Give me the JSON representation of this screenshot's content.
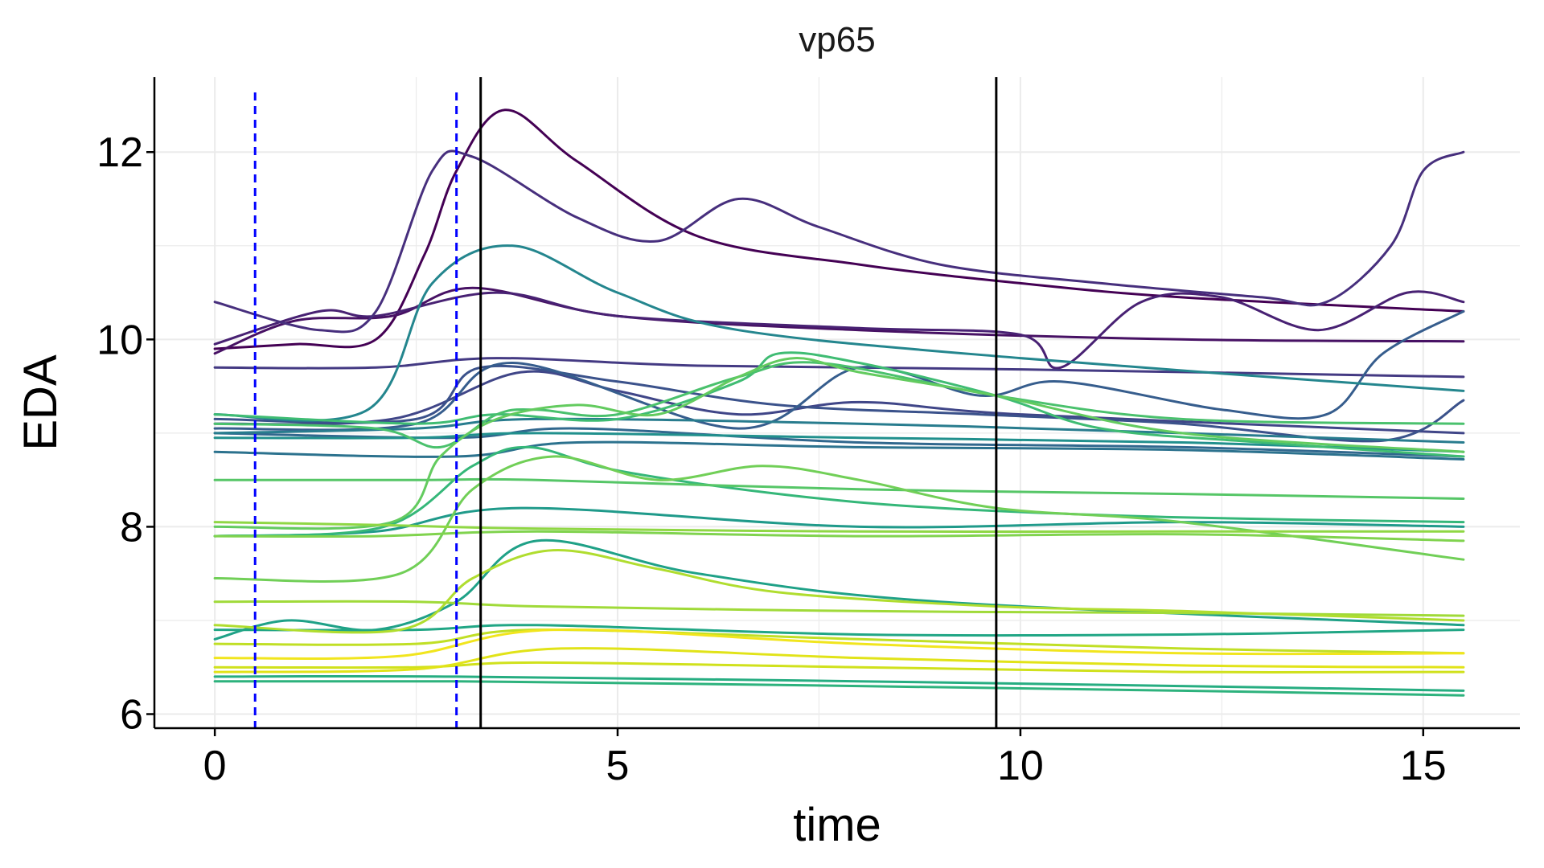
{
  "chart_data": {
    "type": "line",
    "title": "vp65",
    "xlabel": "time",
    "ylabel": "EDA",
    "xlim": [
      -0.75,
      16.2
    ],
    "ylim": [
      5.85,
      12.8
    ],
    "xticks": [
      0,
      5,
      10,
      15
    ],
    "yticks": [
      6,
      8,
      10,
      12
    ],
    "x_tick_labels": [
      "0",
      "5",
      "10",
      "15"
    ],
    "y_tick_labels": [
      "6",
      "8",
      "10",
      "12"
    ],
    "grid": true,
    "legend": "none",
    "vlines_dashed": {
      "color": "#0000ff",
      "x": [
        0.5,
        3.0
      ]
    },
    "vlines_solid": {
      "color": "#000000",
      "x": [
        3.3,
        9.7
      ]
    },
    "series": [
      {
        "color": "#440154",
        "points": [
          [
            0,
            9.9
          ],
          [
            1,
            9.95
          ],
          [
            2,
            10.0
          ],
          [
            2.6,
            10.9
          ],
          [
            3.0,
            11.8
          ],
          [
            3.6,
            12.45
          ],
          [
            4.5,
            11.9
          ],
          [
            6,
            11.1
          ],
          [
            8,
            10.8
          ],
          [
            10,
            10.6
          ],
          [
            12,
            10.45
          ],
          [
            15.5,
            10.3
          ]
        ]
      },
      {
        "color": "#471164",
        "points": [
          [
            0,
            9.85
          ],
          [
            1,
            10.2
          ],
          [
            2.2,
            10.25
          ],
          [
            3.2,
            10.55
          ],
          [
            5,
            10.25
          ],
          [
            8,
            10.1
          ],
          [
            12,
            10.0
          ],
          [
            15.5,
            9.98
          ]
        ]
      },
      {
        "color": "#482173",
        "points": [
          [
            0,
            9.95
          ],
          [
            1.3,
            10.3
          ],
          [
            2,
            10.25
          ],
          [
            3.5,
            10.5
          ],
          [
            5,
            10.25
          ],
          [
            8,
            10.12
          ],
          [
            10,
            10.05
          ],
          [
            10.5,
            9.7
          ],
          [
            11.5,
            10.4
          ],
          [
            12.5,
            10.45
          ],
          [
            13.7,
            10.1
          ],
          [
            14.8,
            10.5
          ],
          [
            15.5,
            10.4
          ]
        ]
      },
      {
        "color": "#472f7d",
        "points": [
          [
            0,
            10.4
          ],
          [
            1.3,
            10.1
          ],
          [
            2,
            10.3
          ],
          [
            2.7,
            11.8
          ],
          [
            3.2,
            11.95
          ],
          [
            4.5,
            11.3
          ],
          [
            5.5,
            11.05
          ],
          [
            6.5,
            11.5
          ],
          [
            7.5,
            11.2
          ],
          [
            9,
            10.8
          ],
          [
            11,
            10.6
          ],
          [
            13,
            10.45
          ],
          [
            13.8,
            10.4
          ],
          [
            14.6,
            11.0
          ],
          [
            15,
            11.8
          ],
          [
            15.5,
            12.0
          ]
        ]
      },
      {
        "color": "#443a83",
        "points": [
          [
            0,
            9.7
          ],
          [
            2,
            9.7
          ],
          [
            3.5,
            9.8
          ],
          [
            6,
            9.72
          ],
          [
            10,
            9.68
          ],
          [
            15.5,
            9.6
          ]
        ]
      },
      {
        "color": "#404688",
        "points": [
          [
            0,
            9.1
          ],
          [
            2.2,
            9.15
          ],
          [
            3.8,
            9.65
          ],
          [
            5,
            9.45
          ],
          [
            6.5,
            9.2
          ],
          [
            8,
            9.33
          ],
          [
            10,
            9.2
          ],
          [
            15.5,
            9.0
          ]
        ]
      },
      {
        "color": "#3b528b",
        "points": [
          [
            0,
            9.15
          ],
          [
            2.5,
            9.15
          ],
          [
            3.3,
            9.7
          ],
          [
            5,
            9.55
          ],
          [
            7,
            9.3
          ],
          [
            9.5,
            9.2
          ],
          [
            12,
            9.1
          ],
          [
            14.5,
            8.92
          ],
          [
            15.5,
            9.35
          ]
        ]
      },
      {
        "color": "#365d8d",
        "points": [
          [
            0,
            9.05
          ],
          [
            2.5,
            9.1
          ],
          [
            3.7,
            9.75
          ],
          [
            6.5,
            9.05
          ],
          [
            8,
            9.7
          ],
          [
            9.5,
            9.4
          ],
          [
            10.5,
            9.55
          ],
          [
            12.5,
            9.25
          ],
          [
            13.8,
            9.2
          ],
          [
            14.5,
            9.85
          ],
          [
            15.5,
            10.3
          ]
        ]
      },
      {
        "color": "#31688e",
        "points": [
          [
            0,
            9.0
          ],
          [
            3,
            8.95
          ],
          [
            4.5,
            9.05
          ],
          [
            8,
            8.9
          ],
          [
            12,
            8.85
          ],
          [
            15.5,
            8.75
          ]
        ]
      },
      {
        "color": "#2c728e",
        "points": [
          [
            0,
            8.8
          ],
          [
            3,
            8.75
          ],
          [
            4.5,
            8.9
          ],
          [
            8,
            8.85
          ],
          [
            12,
            8.82
          ],
          [
            15.5,
            8.72
          ]
        ]
      },
      {
        "color": "#287c8e",
        "points": [
          [
            0,
            9.0
          ],
          [
            2.5,
            9.05
          ],
          [
            4,
            9.15
          ],
          [
            8,
            9.1
          ],
          [
            12,
            9.0
          ],
          [
            15.5,
            8.9
          ]
        ]
      },
      {
        "color": "#24868e",
        "points": [
          [
            0,
            9.2
          ],
          [
            1.9,
            9.25
          ],
          [
            2.7,
            10.6
          ],
          [
            3.7,
            11.0
          ],
          [
            5,
            10.5
          ],
          [
            6.5,
            10.1
          ],
          [
            10,
            9.8
          ],
          [
            15.5,
            9.45
          ]
        ]
      },
      {
        "color": "#21908d",
        "points": [
          [
            0,
            8.95
          ],
          [
            2.5,
            8.95
          ],
          [
            4,
            9.0
          ],
          [
            8,
            8.95
          ],
          [
            12,
            8.9
          ],
          [
            15.5,
            8.8
          ]
        ]
      },
      {
        "color": "#1f9a8a",
        "points": [
          [
            0,
            7.9
          ],
          [
            2,
            7.95
          ],
          [
            3.8,
            8.2
          ],
          [
            8,
            8.0
          ],
          [
            12,
            8.05
          ],
          [
            15.5,
            8.0
          ]
        ]
      },
      {
        "color": "#1fa187",
        "points": [
          [
            0,
            6.8
          ],
          [
            0.9,
            7.0
          ],
          [
            2,
            6.9
          ],
          [
            3,
            7.2
          ],
          [
            4,
            7.85
          ],
          [
            6,
            7.5
          ],
          [
            9,
            7.2
          ],
          [
            15.5,
            6.95
          ]
        ]
      },
      {
        "color": "#21a685",
        "points": [
          [
            0,
            6.9
          ],
          [
            2.5,
            6.9
          ],
          [
            4,
            6.95
          ],
          [
            8,
            6.85
          ],
          [
            12,
            6.85
          ],
          [
            15.5,
            6.9
          ]
        ]
      },
      {
        "color": "#26ad81",
        "points": [
          [
            0,
            6.4
          ],
          [
            3,
            6.4
          ],
          [
            8,
            6.35
          ],
          [
            12,
            6.3
          ],
          [
            15.5,
            6.25
          ]
        ]
      },
      {
        "color": "#2db27d",
        "points": [
          [
            0,
            6.35
          ],
          [
            3,
            6.35
          ],
          [
            8,
            6.3
          ],
          [
            12,
            6.25
          ],
          [
            15.5,
            6.2
          ]
        ]
      },
      {
        "color": "#35b779",
        "points": [
          [
            0,
            7.9
          ],
          [
            2.1,
            8.0
          ],
          [
            3.2,
            8.65
          ],
          [
            3.9,
            8.85
          ],
          [
            5,
            8.6
          ],
          [
            7,
            8.35
          ],
          [
            9,
            8.2
          ],
          [
            12,
            8.1
          ],
          [
            15.5,
            8.05
          ]
        ]
      },
      {
        "color": "#3fbc73",
        "points": [
          [
            0,
            9.2
          ],
          [
            2.5,
            9.1
          ],
          [
            3.5,
            9.2
          ],
          [
            5,
            9.15
          ],
          [
            6.5,
            9.55
          ],
          [
            7,
            9.85
          ],
          [
            8,
            9.75
          ],
          [
            9.7,
            9.4
          ],
          [
            11,
            9.05
          ],
          [
            13,
            8.9
          ],
          [
            15.5,
            8.75
          ]
        ]
      },
      {
        "color": "#4ac16d",
        "points": [
          [
            0,
            9.1
          ],
          [
            2,
            9.05
          ],
          [
            2.8,
            8.85
          ],
          [
            3.5,
            9.2
          ],
          [
            4,
            9.25
          ],
          [
            5,
            9.2
          ],
          [
            6.5,
            9.6
          ],
          [
            7.5,
            9.75
          ],
          [
            9.7,
            9.4
          ],
          [
            12,
            9.15
          ],
          [
            15.5,
            9.1
          ]
        ]
      },
      {
        "color": "#56c667",
        "points": [
          [
            0,
            8.5
          ],
          [
            2.5,
            8.5
          ],
          [
            4,
            8.5
          ],
          [
            8,
            8.4
          ],
          [
            12,
            8.35
          ],
          [
            15.5,
            8.3
          ]
        ]
      },
      {
        "color": "#63cb5f",
        "points": [
          [
            0,
            8.0
          ],
          [
            2.2,
            8.05
          ],
          [
            2.8,
            8.75
          ],
          [
            3.5,
            9.15
          ],
          [
            4.5,
            9.3
          ],
          [
            5.5,
            9.2
          ],
          [
            6.5,
            9.6
          ],
          [
            7.2,
            9.8
          ],
          [
            8,
            9.65
          ],
          [
            9.7,
            9.4
          ],
          [
            12,
            9.0
          ],
          [
            15.5,
            8.8
          ]
        ]
      },
      {
        "color": "#71cf57",
        "points": [
          [
            0,
            7.45
          ],
          [
            2.3,
            7.5
          ],
          [
            3.2,
            8.4
          ],
          [
            4.2,
            8.75
          ],
          [
            5.5,
            8.5
          ],
          [
            6.8,
            8.65
          ],
          [
            8,
            8.5
          ],
          [
            9.7,
            8.2
          ],
          [
            12,
            8.05
          ],
          [
            15.5,
            7.65
          ]
        ]
      },
      {
        "color": "#80d34e",
        "points": [
          [
            0,
            7.9
          ],
          [
            2,
            7.9
          ],
          [
            4,
            7.95
          ],
          [
            8,
            7.9
          ],
          [
            12,
            7.92
          ],
          [
            15.5,
            7.85
          ]
        ]
      },
      {
        "color": "#8fd744",
        "points": [
          [
            0,
            8.05
          ],
          [
            2,
            8.02
          ],
          [
            4,
            7.98
          ],
          [
            8,
            7.95
          ],
          [
            12,
            7.95
          ],
          [
            15.5,
            7.95
          ]
        ]
      },
      {
        "color": "#a0da39",
        "points": [
          [
            0,
            7.2
          ],
          [
            2.5,
            7.2
          ],
          [
            4,
            7.15
          ],
          [
            8,
            7.1
          ],
          [
            12,
            7.08
          ],
          [
            15.5,
            7.05
          ]
        ]
      },
      {
        "color": "#b0dd2f",
        "points": [
          [
            0,
            6.95
          ],
          [
            2.3,
            6.9
          ],
          [
            3.2,
            7.45
          ],
          [
            4.2,
            7.75
          ],
          [
            5.5,
            7.55
          ],
          [
            7,
            7.3
          ],
          [
            9.7,
            7.15
          ],
          [
            12,
            7.1
          ],
          [
            15.5,
            7.0
          ]
        ]
      },
      {
        "color": "#c0df25",
        "points": [
          [
            0,
            6.75
          ],
          [
            2.5,
            6.75
          ],
          [
            4,
            6.9
          ],
          [
            8,
            6.8
          ],
          [
            12,
            6.7
          ],
          [
            15.5,
            6.65
          ]
        ]
      },
      {
        "color": "#d0e11c",
        "points": [
          [
            0,
            6.5
          ],
          [
            2.5,
            6.5
          ],
          [
            4,
            6.55
          ],
          [
            8,
            6.5
          ],
          [
            12,
            6.45
          ],
          [
            15.5,
            6.45
          ]
        ]
      },
      {
        "color": "#e1e318",
        "points": [
          [
            0,
            6.45
          ],
          [
            2.5,
            6.48
          ],
          [
            4.3,
            6.7
          ],
          [
            8,
            6.6
          ],
          [
            12,
            6.52
          ],
          [
            15.5,
            6.5
          ]
        ]
      },
      {
        "color": "#f1e51d",
        "points": [
          [
            0,
            6.6
          ],
          [
            2.3,
            6.62
          ],
          [
            4.2,
            6.9
          ],
          [
            8,
            6.75
          ],
          [
            12,
            6.65
          ],
          [
            15.5,
            6.65
          ]
        ]
      }
    ]
  }
}
